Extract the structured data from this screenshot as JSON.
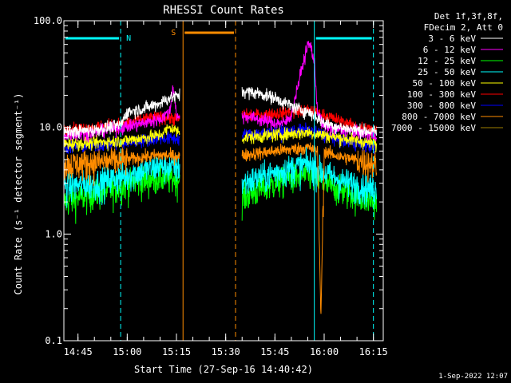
{
  "chart_data": {
    "type": "line",
    "title": "RHESSI Count Rates",
    "xlabel": "Start Time (27-Sep-16 14:40:42)",
    "ylabel": "Count Rate (s⁻¹ detector segment⁻¹)",
    "yscale": "log",
    "ylim": [
      0.1,
      100
    ],
    "xlim": [
      "14:40:42",
      "16:18"
    ],
    "y_ticks": [
      "0.1",
      "1.0",
      "10.0",
      "100.0"
    ],
    "x_ticks": [
      "14:45",
      "15:00",
      "15:15",
      "15:30",
      "15:45",
      "16:00",
      "16:15"
    ],
    "legend_header": [
      "Det 1f,3f,8f,",
      "FDecim 2, Att 0"
    ],
    "legend_placement": "right",
    "series": [
      {
        "name": "3 - 6 keV",
        "color": "#ffffff",
        "segments": [
          {
            "x": [
              "14:40:42",
              "14:50",
              "14:58",
              "15:00",
              "15:05",
              "15:10",
              "15:13",
              "15:16"
            ],
            "y": [
              9.0,
              9.5,
              10.5,
              14,
              15,
              17,
              19,
              20
            ]
          },
          {
            "x": [
              "15:35",
              "15:40",
              "15:45",
              "15:48",
              "15:50",
              "15:52",
              "15:55",
              "15:57",
              "16:00",
              "16:05",
              "16:10",
              "16:16"
            ],
            "y": [
              22,
              21,
              19,
              17,
              16,
              15,
              14,
              13,
              11,
              10,
              9.5,
              9.0
            ]
          }
        ]
      },
      {
        "name": "6 - 12 keV",
        "color": "#ff00ff",
        "segments": [
          {
            "x": [
              "14:40:42",
              "14:50",
              "14:58",
              "15:05",
              "15:10",
              "15:13",
              "15:14",
              "15:15",
              "15:16"
            ],
            "y": [
              8.5,
              9.0,
              10,
              11,
              12,
              14,
              25,
              13,
              12
            ]
          },
          {
            "x": [
              "15:35",
              "15:40",
              "15:45",
              "15:48",
              "15:50",
              "15:52",
              "15:54",
              "15:55",
              "15:56",
              "15:57",
              "15:58",
              "16:00",
              "16:05",
              "16:10",
              "16:16"
            ],
            "y": [
              13,
              12,
              11,
              11,
              13,
              25,
              45,
              60,
              58,
              40,
              14,
              10,
              9.5,
              9.0,
              8.5
            ]
          }
        ]
      },
      {
        "name": "12 - 25 keV",
        "color": "#00ff00",
        "segments": [
          {
            "x": [
              "14:40:42",
              "14:45",
              "14:50",
              "14:55",
              "15:00",
              "15:05",
              "15:10",
              "15:16"
            ],
            "y": [
              2.0,
              2.2,
              2.4,
              2.6,
              3.0,
              3.2,
              3.4,
              3.3
            ]
          },
          {
            "x": [
              "15:35",
              "15:40",
              "15:45",
              "15:50",
              "15:55",
              "16:00",
              "16:05",
              "16:10",
              "16:16"
            ],
            "y": [
              2.2,
              2.6,
              3.0,
              3.4,
              3.6,
              3.0,
              2.6,
              2.3,
              2.0
            ]
          }
        ]
      },
      {
        "name": "25 - 50 keV",
        "color": "#00ffff",
        "segments": [
          {
            "x": [
              "14:40:42",
              "14:50",
              "15:00",
              "15:05",
              "15:10",
              "15:16"
            ],
            "y": [
              2.8,
              3.0,
              3.6,
              4.0,
              4.4,
              4.2
            ]
          },
          {
            "x": [
              "15:35",
              "15:40",
              "15:45",
              "15:50",
              "15:55",
              "16:00",
              "16:05",
              "16:10",
              "16:16"
            ],
            "y": [
              3.0,
              3.4,
              3.8,
              4.2,
              4.6,
              3.8,
              3.2,
              2.9,
              2.6
            ]
          }
        ]
      },
      {
        "name": "50 - 100 keV",
        "color": "#ffff00",
        "segments": [
          {
            "x": [
              "14:40:42",
              "14:50",
              "15:00",
              "15:05",
              "15:10",
              "15:13",
              "15:16"
            ],
            "y": [
              7.0,
              7.2,
              7.6,
              8.0,
              8.5,
              10,
              9.0
            ]
          },
          {
            "x": [
              "15:35",
              "15:45",
              "15:55",
              "16:05",
              "16:16"
            ],
            "y": [
              8.0,
              8.5,
              9.0,
              8.0,
              7.0
            ]
          }
        ]
      },
      {
        "name": "100 - 300 keV",
        "color": "#ff0000",
        "segments": [
          {
            "x": [
              "14:40:42",
              "14:50",
              "15:00",
              "15:05",
              "15:10",
              "15:16"
            ],
            "y": [
              9.5,
              10,
              11,
              12,
              12.5,
              12
            ]
          },
          {
            "x": [
              "15:35",
              "15:40",
              "15:45",
              "15:50",
              "15:55",
              "16:00",
              "16:05",
              "16:10",
              "16:16"
            ],
            "y": [
              13,
              13,
              13.5,
              14,
              14.5,
              13,
              11.5,
              10,
              9.5
            ]
          }
        ]
      },
      {
        "name": "300 - 800 keV",
        "color": "#0000ff",
        "segments": [
          {
            "x": [
              "14:40:42",
              "14:50",
              "15:00",
              "15:05",
              "15:10",
              "15:16"
            ],
            "y": [
              6.5,
              6.8,
              7.2,
              7.6,
              8.0,
              7.8
            ]
          },
          {
            "x": [
              "15:35",
              "15:45",
              "15:55",
              "16:00",
              "16:05",
              "16:10",
              "16:16"
            ],
            "y": [
              8.5,
              9.0,
              9.5,
              8.5,
              7.5,
              7.0,
              6.5
            ]
          }
        ]
      },
      {
        "name": "800 - 7000 keV",
        "color": "#ff8c00",
        "segments": [
          {
            "x": [
              "14:40:42",
              "14:50",
              "15:00",
              "15:05",
              "15:10",
              "15:16"
            ],
            "y": [
              4.5,
              4.7,
              5.0,
              5.3,
              5.5,
              5.4
            ]
          },
          {
            "x": [
              "15:35",
              "15:45",
              "15:55",
              "15:58",
              "15:59",
              "16:00",
              "16:01",
              "16:05",
              "16:10",
              "16:16"
            ],
            "y": [
              5.5,
              6.0,
              6.5,
              6.0,
              0.16,
              6.0,
              5.8,
              5.3,
              5.0,
              4.5
            ]
          }
        ]
      },
      {
        "name": "7000 - 15000 keV",
        "color": "#a08000",
        "segments": []
      }
    ],
    "annotations": {
      "night_bars": [
        {
          "label": "N",
          "from": "14:40:42",
          "to": "14:58"
        },
        {
          "label": "",
          "from": "15:57",
          "to": "16:15"
        }
      ],
      "saa_bar": {
        "label": "S",
        "from": "15:17",
        "to": "15:33"
      },
      "vlines": [
        {
          "x": "14:40:42",
          "color": "#00ffff",
          "style": "solid"
        },
        {
          "x": "14:58",
          "color": "#00ffff",
          "style": "dashed"
        },
        {
          "x": "15:17",
          "color": "#ff8c00",
          "style": "solid"
        },
        {
          "x": "15:33",
          "color": "#ff8c00",
          "style": "dashed"
        },
        {
          "x": "15:57",
          "color": "#00ffff",
          "style": "solid"
        },
        {
          "x": "16:15",
          "color": "#00ffff",
          "style": "dashed"
        }
      ],
      "cyan_color": "#00ffff",
      "orange_color": "#ff8c00"
    },
    "footer": "1-Sep-2022 12:07"
  }
}
